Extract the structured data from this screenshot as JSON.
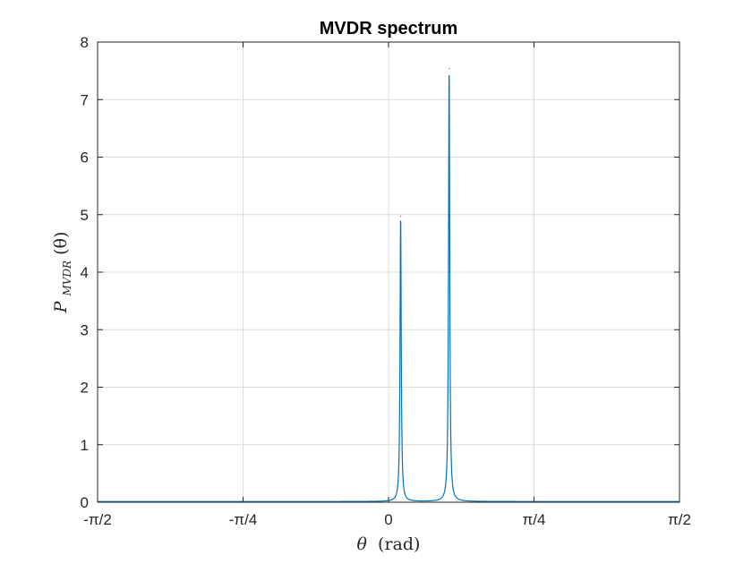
{
  "chart_data": {
    "type": "line",
    "title": "MVDR spectrum",
    "xlabel_symbol": "θ",
    "xlabel_unit": "(rad)",
    "ylabel_base": "P",
    "ylabel_subscript": "MVDR",
    "ylabel_arg": "(θ)",
    "xlim": [
      -1.5708,
      1.5708
    ],
    "ylim": [
      0,
      8
    ],
    "xticks": [
      {
        "value": -1.5708,
        "label": "-π/2"
      },
      {
        "value": -0.7854,
        "label": "-π/4"
      },
      {
        "value": 0,
        "label": "0"
      },
      {
        "value": 0.7854,
        "label": "π/4"
      },
      {
        "value": 1.5708,
        "label": "π/2"
      }
    ],
    "yticks": [
      0,
      1,
      2,
      3,
      4,
      5,
      6,
      7,
      8
    ],
    "grid": true,
    "series": [
      {
        "color": "#0072BD",
        "baseline": 0.012,
        "peaks": [
          {
            "theta": 0.0654,
            "height": 4.97,
            "halfwidth": 0.0038
          },
          {
            "theta": 0.3272,
            "height": 7.54,
            "halfwidth": 0.0038
          }
        ]
      }
    ]
  }
}
